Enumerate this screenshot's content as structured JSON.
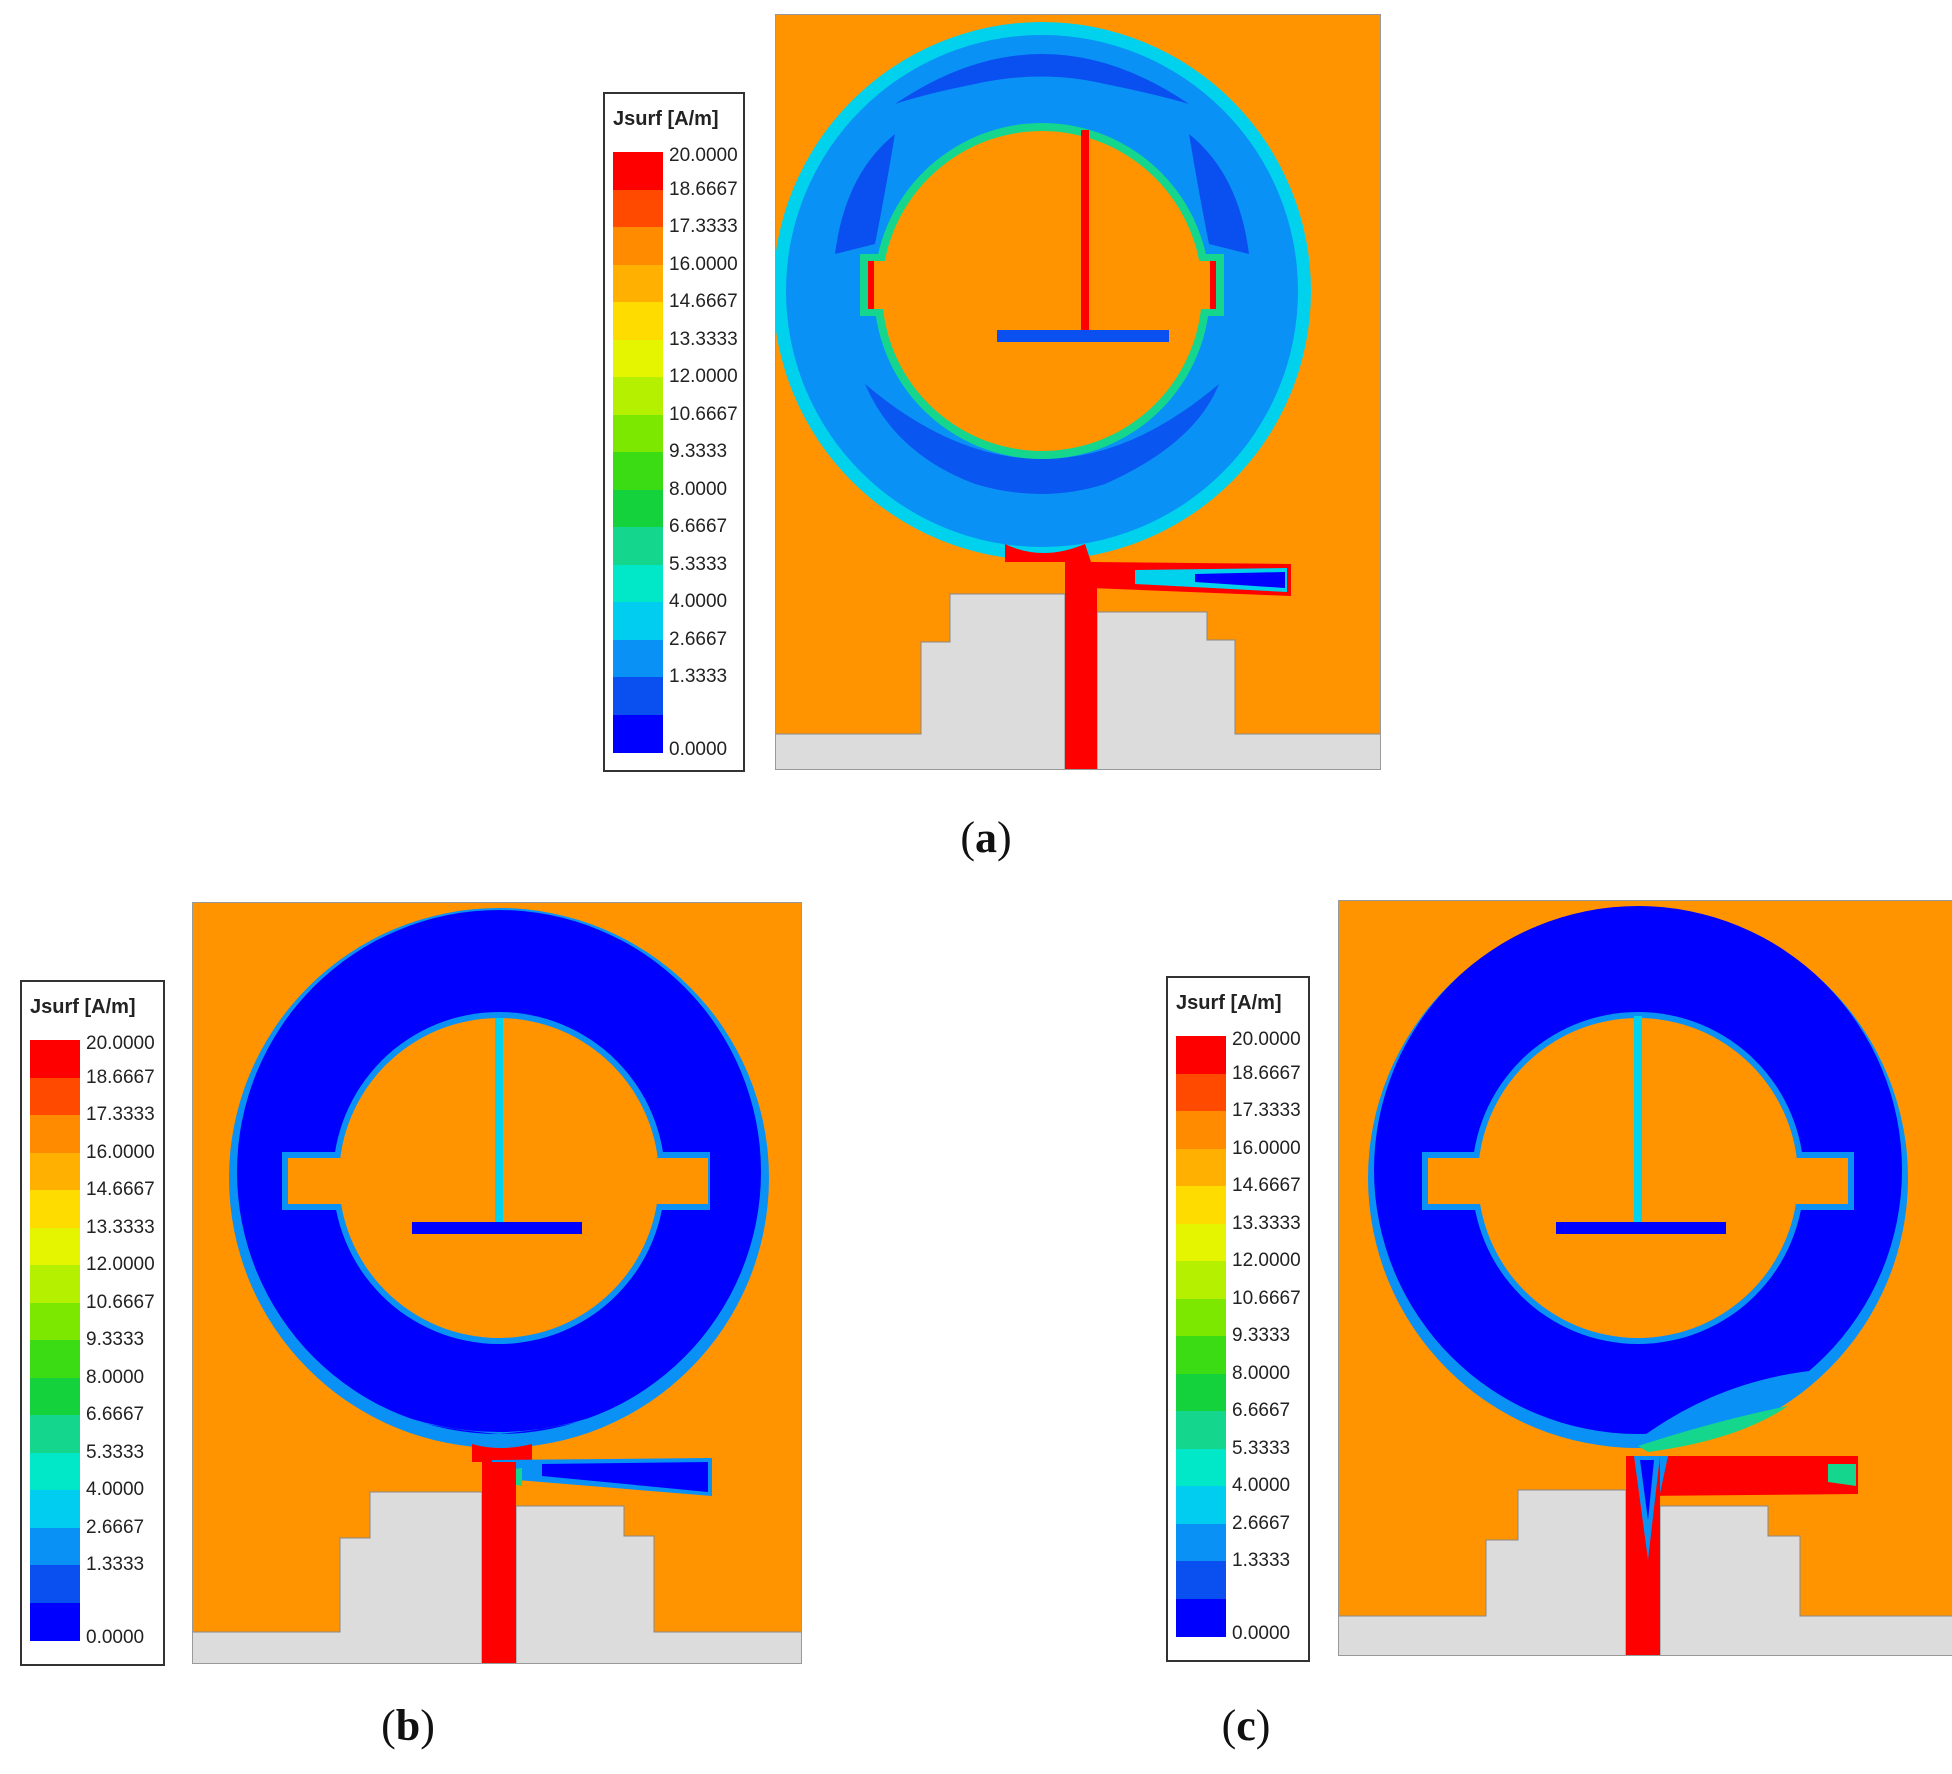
{
  "legend": {
    "title": "Jsurf [A/m]",
    "ticks": [
      "20.0000",
      "18.6667",
      "17.3333",
      "16.0000",
      "14.6667",
      "13.3333",
      "12.0000",
      "10.6667",
      "9.3333",
      "8.0000",
      "6.6667",
      "5.3333",
      "4.0000",
      "2.6667",
      "1.3333",
      "0.0000"
    ],
    "colors": [
      "#ff0000",
      "#ff4a00",
      "#ff8c00",
      "#ffb000",
      "#ffdc00",
      "#e5f500",
      "#b4f000",
      "#7ce800",
      "#3cdc14",
      "#14d23c",
      "#14d68c",
      "#00e8c8",
      "#00cdf0",
      "#0a91f5",
      "#0a50f0",
      "#0000ff"
    ]
  },
  "panels": [
    {
      "label": "(a)",
      "caption_letter": "a",
      "paren_open": "(",
      "paren_close": ")"
    },
    {
      "label": "(b)",
      "caption_letter": "b",
      "paren_open": "(",
      "paren_close": ")"
    },
    {
      "label": "(c)",
      "caption_letter": "c",
      "paren_open": "(",
      "paren_close": ")"
    }
  ],
  "colors": {
    "substrate": "#ff9400",
    "ground": "#dcdcdc",
    "ring_low": "#0000ff",
    "ring_mid": "#0a91f5",
    "ring_cyan": "#00d2ee",
    "ring_green": "#14d68c",
    "feed_red": "#ff0000",
    "frame": "#333333"
  }
}
